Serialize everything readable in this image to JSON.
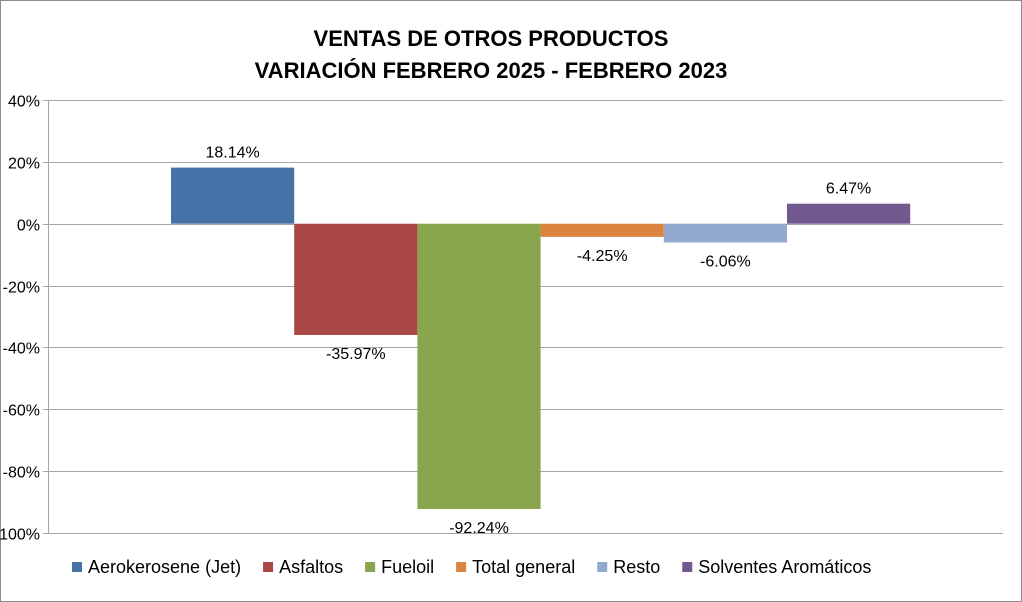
{
  "chart_data": {
    "type": "bar",
    "title": "VENTAS DE OTROS PRODUCTOS",
    "subtitle": "VARIACIÓN FEBRERO 2025 - FEBRERO 2023",
    "xlabel": "",
    "ylabel": "",
    "ylim": [
      -100,
      40
    ],
    "yticks": [
      40,
      20,
      0,
      -20,
      -40,
      -60,
      -80,
      -100
    ],
    "ytick_labels": [
      "40%",
      "20%",
      "0%",
      "-20%",
      "-40%",
      "-60%",
      "-80%",
      "-100%"
    ],
    "grid": true,
    "legend_position": "bottom",
    "series": [
      {
        "name": "Aerokerosene (Jet)",
        "value": 18.14,
        "label": "18.14%",
        "color": "#4572A7"
      },
      {
        "name": "Asfaltos",
        "value": -35.97,
        "label": "-35.97%",
        "color": "#AA4643"
      },
      {
        "name": "Fueloil",
        "value": -92.24,
        "label": "-92.24%",
        "color": "#89A54E"
      },
      {
        "name": "Total general",
        "value": -4.25,
        "label": "-4.25%",
        "color": "#DB843D"
      },
      {
        "name": "Resto",
        "value": -6.06,
        "label": "-6.06%",
        "color": "#93A9CF"
      },
      {
        "name": "Solventes Aromáticos",
        "value": 6.47,
        "label": "6.47%",
        "color": "#71588F"
      }
    ]
  }
}
